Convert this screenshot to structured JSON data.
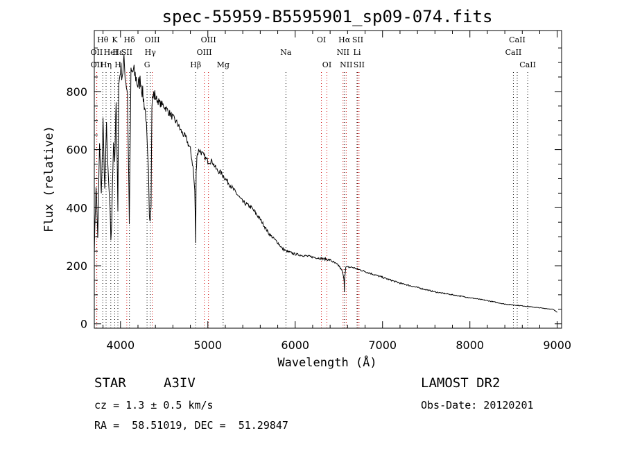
{
  "chart_data": {
    "type": "line",
    "title": "spec-55959-B5595901_sp09-074.fits",
    "xlabel": "Wavelength (Å)",
    "ylabel": "Flux (relative)",
    "xlim": [
      3700,
      9050
    ],
    "ylim": [
      -15,
      1010
    ],
    "xticks": [
      4000,
      5000,
      6000,
      7000,
      8000,
      9000
    ],
    "yticks": [
      0,
      200,
      400,
      600,
      800
    ],
    "series": [
      {
        "name": "flux",
        "x": [
          3700,
          3720,
          3740,
          3760,
          3780,
          3800,
          3820,
          3840,
          3860,
          3880,
          3890,
          3900,
          3920,
          3933,
          3950,
          3970,
          3980,
          4000,
          4020,
          4040,
          4060,
          4080,
          4101,
          4120,
          4150,
          4180,
          4200,
          4230,
          4260,
          4290,
          4310,
          4320,
          4330,
          4340,
          4350,
          4360,
          4380,
          4400,
          4450,
          4500,
          4550,
          4600,
          4650,
          4700,
          4750,
          4800,
          4830,
          4850,
          4861,
          4866,
          4875,
          4900,
          4950,
          5000,
          5050,
          5100,
          5150,
          5200,
          5300,
          5400,
          5500,
          5600,
          5700,
          5800,
          5850,
          5900,
          6000,
          6100,
          6200,
          6300,
          6400,
          6500,
          6540,
          6560,
          6563,
          6566,
          6580,
          6650,
          6700,
          6800,
          7000,
          7200,
          7400,
          7600,
          7800,
          8000,
          8200,
          8400,
          8600,
          8800,
          8950,
          9000
        ],
        "y": [
          250,
          480,
          300,
          620,
          440,
          700,
          460,
          680,
          500,
          400,
          280,
          360,
          640,
          560,
          760,
          400,
          820,
          880,
          860,
          900,
          840,
          800,
          350,
          860,
          870,
          845,
          820,
          840,
          780,
          720,
          580,
          520,
          380,
          360,
          420,
          760,
          790,
          780,
          760,
          750,
          730,
          710,
          690,
          660,
          640,
          600,
          540,
          460,
          280,
          520,
          580,
          600,
          580,
          560,
          560,
          530,
          520,
          500,
          460,
          420,
          400,
          360,
          310,
          280,
          260,
          250,
          240,
          235,
          230,
          225,
          220,
          200,
          180,
          150,
          110,
          160,
          195,
          195,
          190,
          180,
          160,
          140,
          125,
          110,
          100,
          90,
          80,
          68,
          62,
          55,
          50,
          40
        ]
      }
    ],
    "line_markers": [
      {
        "name": "Hθ",
        "x": 3797,
        "color": "black",
        "row": 0
      },
      {
        "name": "OII",
        "x": 3727,
        "color": "red",
        "row": 1
      },
      {
        "name": "OII",
        "x": 3729,
        "color": "red",
        "row": 2
      },
      {
        "name": "Hη",
        "x": 3835,
        "color": "black",
        "row": 2
      },
      {
        "name": "K",
        "x": 3934,
        "color": "black",
        "row": 0
      },
      {
        "name": "HeI",
        "x": 3889,
        "color": "black",
        "row": 1
      },
      {
        "name": "H",
        "x": 3970,
        "color": "black",
        "row": 2
      },
      {
        "name": "Hε",
        "x": 3970,
        "color": "black",
        "row": 1
      },
      {
        "name": "Hδ",
        "x": 4102,
        "color": "black",
        "row": 0
      },
      {
        "name": "SII",
        "x": 4072,
        "color": "red",
        "row": 1
      },
      {
        "name": "OIII",
        "x": 4363,
        "color": "red",
        "row": 0
      },
      {
        "name": "Hγ",
        "x": 4341,
        "color": "black",
        "row": 1
      },
      {
        "name": "G",
        "x": 4304,
        "color": "black",
        "row": 2
      },
      {
        "name": "OIII",
        "x": 5007,
        "color": "red",
        "row": 0
      },
      {
        "name": "OIII",
        "x": 4959,
        "color": "red",
        "row": 1
      },
      {
        "name": "Hβ",
        "x": 4861,
        "color": "black",
        "row": 2
      },
      {
        "name": "Mg",
        "x": 5175,
        "color": "black",
        "row": 2
      },
      {
        "name": "Na",
        "x": 5894,
        "color": "black",
        "row": 1
      },
      {
        "name": "OI",
        "x": 6300,
        "color": "red",
        "row": 0
      },
      {
        "name": "OI",
        "x": 6363,
        "color": "red",
        "row": 2
      },
      {
        "name": "Hα",
        "x": 6563,
        "color": "black",
        "row": 0
      },
      {
        "name": "SII",
        "x": 6716,
        "color": "red",
        "row": 0
      },
      {
        "name": "NII",
        "x": 6548,
        "color": "red",
        "row": 1
      },
      {
        "name": "Li",
        "x": 6708,
        "color": "black",
        "row": 1
      },
      {
        "name": "NII",
        "x": 6584,
        "color": "red",
        "row": 2
      },
      {
        "name": "SII",
        "x": 6731,
        "color": "red",
        "row": 2
      },
      {
        "name": "CaII",
        "x": 8542,
        "color": "black",
        "row": 0
      },
      {
        "name": "CaII",
        "x": 8498,
        "color": "black",
        "row": 1
      },
      {
        "name": "CaII",
        "x": 8662,
        "color": "black",
        "row": 2
      }
    ]
  },
  "info": {
    "class_label": "STAR",
    "subclass": "A3IV",
    "survey": "LAMOST DR2",
    "cz": "cz = 1.3 ± 0.5 km/s",
    "obs_date": "Obs-Date: 20120201",
    "radec": "RA =  58.51019, DEC =  51.29847"
  }
}
